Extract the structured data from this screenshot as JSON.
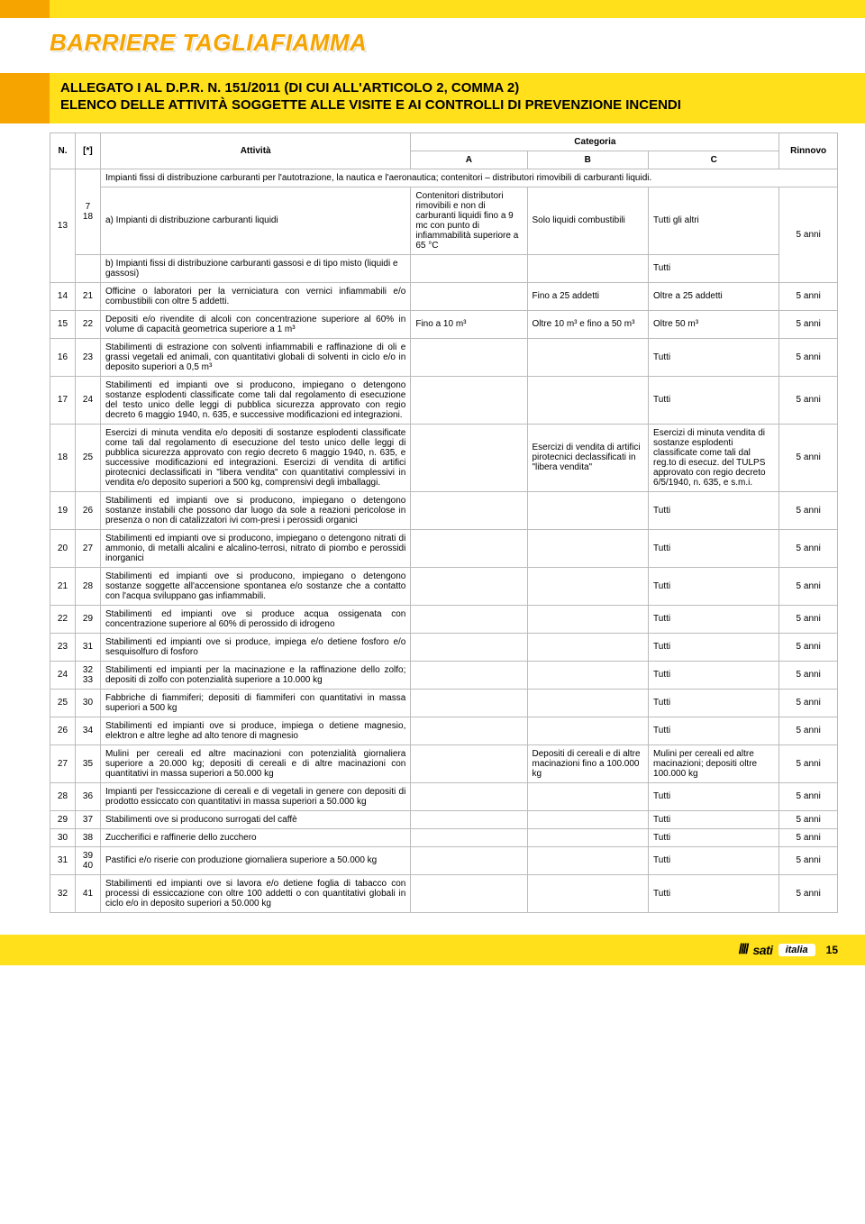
{
  "header": {
    "main_title": "BARRIERE TAGLIAFIAMMA",
    "subtitle_line1": "ALLEGATO I AL D.P.R. N. 151/2011 (DI CUI ALL'ARTICOLO 2, COMMA 2)",
    "subtitle_line2": "ELENCO DELLE ATTIVITÀ SOGGETTE ALLE VISITE E AI CONTROLLI DI PREVENZIONE INCENDI"
  },
  "columns": {
    "n": "N.",
    "star": "[*]",
    "att": "Attività",
    "cat": "Categoria",
    "a": "A",
    "b": "B",
    "c": "C",
    "rin": "Rinnovo"
  },
  "section_header_13": "Impianti fissi di distribuzione carburanti per l'autotrazione, la nautica e l'aeronautica; contenitori – distributori rimovibili di carburanti liquidi.",
  "row13": {
    "n": "13",
    "star": "7\n18",
    "desc": "a) Impianti di distribuzione carburanti liquidi",
    "a": "Contenitori distributori rimovibili e non di carburanti liquidi fino a 9 mc con punto di infiammabilità superiore a 65 °C",
    "b": "Solo liquidi combustibili",
    "c": "Tutti gli altri",
    "r": "5 anni"
  },
  "row13b": {
    "desc": "b) Impianti fissi di distribuzione carburanti gassosi e di tipo misto (liquidi e gassosi)",
    "c": "Tutti"
  },
  "rows": [
    {
      "n": "14",
      "star": "21",
      "desc": "Officine o laboratori per la verniciatura con vernici infiammabili e/o combustibili con oltre 5 addetti.",
      "a": "",
      "b": "Fino a 25 addetti",
      "c": "Oltre a 25 addetti",
      "r": "5 anni"
    },
    {
      "n": "15",
      "star": "22",
      "desc": "Depositi e/o rivendite di alcoli con concentrazione superiore al 60% in volume di capacità geometrica superiore a 1 m³",
      "a": "Fino a 10 m³",
      "b": "Oltre 10 m³ e fino a 50 m³",
      "c": "Oltre 50 m³",
      "r": "5 anni"
    },
    {
      "n": "16",
      "star": "23",
      "desc": "Stabilimenti di estrazione con solventi infiammabili e raffinazione di oli e grassi vegetali ed animali, con quantitativi globali di solventi in ciclo e/o in deposito superiori a 0,5 m³",
      "a": "",
      "b": "",
      "c": "Tutti",
      "r": "5 anni"
    },
    {
      "n": "17",
      "star": "24",
      "desc": "Stabilimenti ed impianti ove si producono, impiegano o detengono sostanze esplodenti classificate come tali dal regolamento di esecuzione del testo unico delle leggi di pubblica sicurezza approvato con regio decreto 6 maggio 1940, n. 635, e successive modificazioni ed integrazioni.",
      "a": "",
      "b": "",
      "c": "Tutti",
      "r": "5 anni"
    },
    {
      "n": "18",
      "star": "25",
      "desc": "Esercizi di minuta vendita e/o depositi di sostanze esplodenti classificate come tali dal regolamento di esecuzione del testo unico delle leggi di pubblica sicurezza approvato con regio decreto 6 maggio 1940, n. 635, e successive modificazioni ed integrazioni. Esercizi di vendita di artifici pirotecnici declassificati in \"libera vendita\" con quantitativi complessivi in vendita e/o deposito superiori a 500 kg, comprensivi degli imballaggi.",
      "a": "",
      "b": "Esercizi di vendita di artifici pirotecnici declassificati in \"libera vendita\"",
      "c": "Esercizi di minuta vendita di sostanze esplodenti classificate come tali dal reg.to di esecuz. del TULPS approvato con regio decreto 6/5/1940, n. 635, e s.m.i.",
      "r": "5 anni"
    },
    {
      "n": "19",
      "star": "26",
      "desc": "Stabilimenti ed impianti ove si producono, impiegano o detengono sostanze instabili che possono dar luogo da sole a reazioni pericolose in presenza o non di catalizzatori ivi com-presi i perossidi organici",
      "a": "",
      "b": "",
      "c": "Tutti",
      "r": "5 anni"
    },
    {
      "n": "20",
      "star": "27",
      "desc": "Stabilimenti ed impianti ove si producono, impiegano o detengono nitrati di ammonio, di metalli alcalini e alcalino-terrosi, nitrato di piombo e perossidi inorganici",
      "a": "",
      "b": "",
      "c": "Tutti",
      "r": "5 anni"
    },
    {
      "n": "21",
      "star": "28",
      "desc": "Stabilimenti ed impianti ove si producono, impiegano o detengono sostanze soggette all'accensione spontanea e/o sostanze che a contatto con l'acqua sviluppano gas infiammabili.",
      "a": "",
      "b": "",
      "c": "Tutti",
      "r": "5 anni"
    },
    {
      "n": "22",
      "star": "29",
      "desc": "Stabilimenti ed impianti ove si produce acqua ossigenata con concentrazione superiore al 60% di perossido di idrogeno",
      "a": "",
      "b": "",
      "c": "Tutti",
      "r": "5 anni"
    },
    {
      "n": "23",
      "star": "31",
      "desc": "Stabilimenti ed impianti ove si produce, impiega e/o detiene fosforo e/o sesquisolfuro di fosforo",
      "a": "",
      "b": "",
      "c": "Tutti",
      "r": "5 anni"
    },
    {
      "n": "24",
      "star": "32\n33",
      "desc": "Stabilimenti ed impianti per la macinazione e la raffinazione dello zolfo; depositi di zolfo con potenzialità superiore a 10.000 kg",
      "a": "",
      "b": "",
      "c": "Tutti",
      "r": "5 anni"
    },
    {
      "n": "25",
      "star": "30",
      "desc": "Fabbriche di fiammiferi; depositi di fiammiferi con quantitativi in massa superiori a 500 kg",
      "a": "",
      "b": "",
      "c": "Tutti",
      "r": "5 anni"
    },
    {
      "n": "26",
      "star": "34",
      "desc": "Stabilimenti ed impianti ove si produce, impiega o detiene magnesio, elektron e altre leghe ad alto tenore di magnesio",
      "a": "",
      "b": "",
      "c": "Tutti",
      "r": "5 anni"
    },
    {
      "n": "27",
      "star": "35",
      "desc": "Mulini per cereali ed altre macinazioni con potenzialità giornaliera superiore a 20.000 kg; depositi di cereali e di altre macinazioni con quantitativi in massa superiori a 50.000 kg",
      "a": "",
      "b": "Depositi di cereali e di altre macinazioni fino a 100.000 kg",
      "c": "Mulini per cereali ed altre macinazioni; depositi oltre 100.000 kg",
      "r": "5 anni"
    },
    {
      "n": "28",
      "star": "36",
      "desc": "Impianti per l'essiccazione di cereali e di vegetali in genere con depositi di prodotto essiccato con quantitativi in massa superiori a 50.000 kg",
      "a": "",
      "b": "",
      "c": "Tutti",
      "r": "5 anni"
    },
    {
      "n": "29",
      "star": "37",
      "desc": "Stabilimenti ove si producono surrogati del caffè",
      "a": "",
      "b": "",
      "c": "Tutti",
      "r": "5 anni"
    },
    {
      "n": "30",
      "star": "38",
      "desc": "Zuccherifici e raffinerie dello zucchero",
      "a": "",
      "b": "",
      "c": "Tutti",
      "r": "5 anni"
    },
    {
      "n": "31",
      "star": "39\n40",
      "desc": "Pastifici e/o riserie con produzione giornaliera superiore a 50.000 kg",
      "a": "",
      "b": "",
      "c": "Tutti",
      "r": "5 anni"
    },
    {
      "n": "32",
      "star": "41",
      "desc": "Stabilimenti ed impianti ove si lavora e/o detiene foglia di tabacco con processi di essiccazione con oltre 100 addetti o con quantitativi globali in ciclo e/o in deposito superiori a 50.000 kg",
      "a": "",
      "b": "",
      "c": "Tutti",
      "r": "5 anni"
    }
  ],
  "footer": {
    "brand": "sati",
    "italia": "italia",
    "page": "15"
  }
}
